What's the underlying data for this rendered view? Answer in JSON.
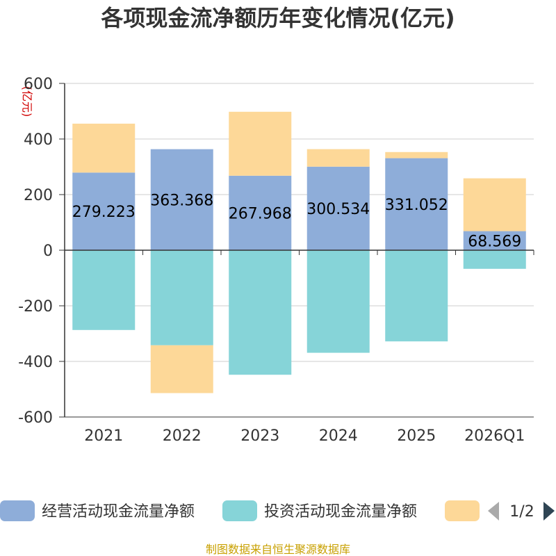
{
  "chart_data": {
    "type": "bar",
    "stacked": true,
    "title": "各项现金流净额历年变化情况(亿元)",
    "ylabel": "(亿元)",
    "categories": [
      "2021",
      "2022",
      "2023",
      "2024",
      "2025",
      "2026Q1"
    ],
    "ylim": [
      -600,
      600
    ],
    "yticks": [
      600,
      400,
      200,
      0,
      -200,
      -400,
      -600
    ],
    "grid": true,
    "series": [
      {
        "name": "经营活动现金流量净额",
        "color": "#8eadd9",
        "values": [
          279.223,
          363.368,
          267.968,
          300.534,
          331.052,
          68.569
        ],
        "show_labels": true
      },
      {
        "name": "投资活动现金流量净额",
        "color": "#86d4d8",
        "values": [
          -287,
          -342,
          -448,
          -369,
          -328,
          -67
        ],
        "show_labels": false
      },
      {
        "name": "",
        "color": "#fdd898",
        "values": [
          176,
          -172,
          230,
          63,
          22,
          190
        ],
        "show_labels": false
      }
    ],
    "legend": {
      "placement": "bottom",
      "page_indicator": "1/2"
    },
    "source": "制图数据来自恒生聚源数据库"
  }
}
